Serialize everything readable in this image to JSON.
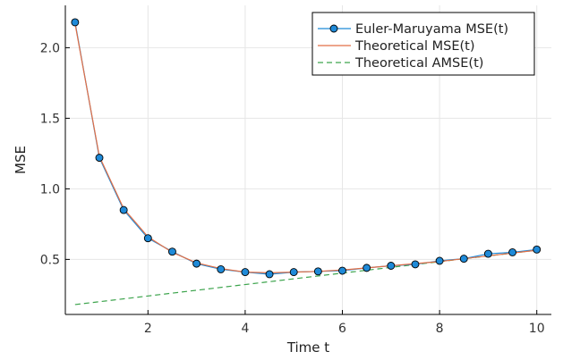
{
  "chart_data": {
    "type": "line",
    "xlabel": "Time t",
    "ylabel": "MSE",
    "xlim": [
      0.3,
      10.3
    ],
    "ylim": [
      0.11,
      2.3
    ],
    "xticks": [
      2,
      4,
      6,
      8,
      10
    ],
    "xtick_labels": [
      "2",
      "4",
      "6",
      "8",
      "10"
    ],
    "yticks": [
      0.5,
      1.0,
      1.5,
      2.0
    ],
    "ytick_labels": [
      "0.5",
      "1.0",
      "1.5",
      "2.0"
    ],
    "grid": true,
    "legend_position": "top-right",
    "series": [
      {
        "name": "Euler-Maruyama MSE(t)",
        "color": "#1f8ad8",
        "style": "line-with-markers",
        "x": [
          0.5,
          1.0,
          1.5,
          2.0,
          2.5,
          3.0,
          3.5,
          4.0,
          4.5,
          5.0,
          5.5,
          6.0,
          6.5,
          7.0,
          7.5,
          8.0,
          8.5,
          9.0,
          9.5,
          10.0
        ],
        "y": [
          2.18,
          1.22,
          0.85,
          0.65,
          0.555,
          0.47,
          0.43,
          0.41,
          0.395,
          0.41,
          0.415,
          0.42,
          0.44,
          0.455,
          0.465,
          0.49,
          0.505,
          0.54,
          0.55,
          0.57
        ]
      },
      {
        "name": "Theoretical MSE(t)",
        "color": "#e26f46",
        "style": "solid",
        "x": [
          0.5,
          1.0,
          1.5,
          2.0,
          2.5,
          3.0,
          3.5,
          4.0,
          4.5,
          5.0,
          5.5,
          6.0,
          6.5,
          7.0,
          7.5,
          8.0,
          8.5,
          9.0,
          9.5,
          10.0
        ],
        "y": [
          2.17,
          1.23,
          0.86,
          0.66,
          0.55,
          0.475,
          0.435,
          0.41,
          0.405,
          0.41,
          0.415,
          0.425,
          0.44,
          0.455,
          0.47,
          0.485,
          0.505,
          0.525,
          0.545,
          0.565
        ]
      },
      {
        "name": "Theoretical AMSE(t)",
        "color": "#3da44d",
        "style": "dashed",
        "x": [
          0.5,
          10.0
        ],
        "y": [
          0.18,
          0.565
        ]
      }
    ]
  }
}
